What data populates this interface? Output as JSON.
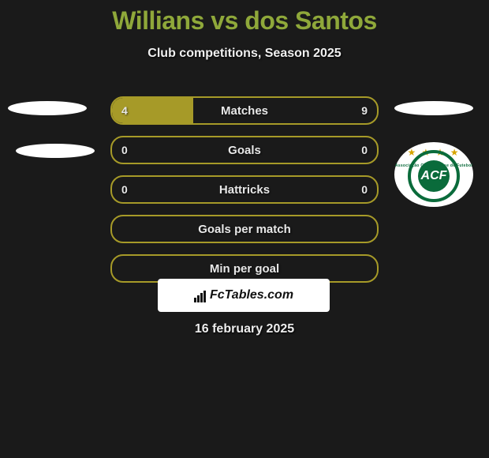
{
  "title_color": "#8fa83a",
  "title": "Willians vs dos Santos",
  "subtitle": "Club competitions, Season 2025",
  "border_color": "#a69a28",
  "fill_color": "#a69a28",
  "background_color": "#1a1a1a",
  "crest": {
    "stars": "★ ★ ★ ★",
    "arc_text": "Associação Chapecoense de Futebol",
    "monogram": "ACF",
    "ring_color": "#0a6b3b"
  },
  "rows": [
    {
      "label": "Matches",
      "left": "4",
      "right": "9",
      "fill_pct": 30.77
    },
    {
      "label": "Goals",
      "left": "0",
      "right": "0",
      "fill_pct": 0
    },
    {
      "label": "Hattricks",
      "left": "0",
      "right": "0",
      "fill_pct": 0
    },
    {
      "label": "Goals per match",
      "left": "",
      "right": "",
      "fill_pct": 0
    },
    {
      "label": "Min per goal",
      "left": "",
      "right": "",
      "fill_pct": 0
    }
  ],
  "footer_brand": "FcTables.com",
  "date": "16 february 2025",
  "font_sizes": {
    "title": 32,
    "subtitle": 16,
    "row_label": 15,
    "row_value": 14,
    "date": 16
  }
}
